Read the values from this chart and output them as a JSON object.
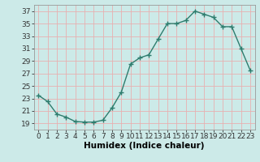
{
  "x": [
    0,
    1,
    2,
    3,
    4,
    5,
    6,
    7,
    8,
    9,
    10,
    11,
    12,
    13,
    14,
    15,
    16,
    17,
    18,
    19,
    20,
    21,
    22,
    23
  ],
  "y": [
    23.5,
    22.5,
    20.5,
    20.0,
    19.3,
    19.2,
    19.2,
    19.5,
    21.5,
    24.0,
    28.5,
    29.5,
    30.0,
    32.5,
    35.0,
    35.0,
    35.5,
    37.0,
    36.5,
    36.0,
    34.5,
    34.5,
    31.0,
    27.5
  ],
  "line_color": "#2e7d6e",
  "marker": "+",
  "marker_size": 4,
  "marker_lw": 1.0,
  "line_width": 1.0,
  "bg_color": "#cceae8",
  "grid_color": "#e8b0b0",
  "xlabel": "Humidex (Indice chaleur)",
  "xlim": [
    -0.5,
    23.5
  ],
  "ylim": [
    18.0,
    38.0
  ],
  "yticks": [
    19,
    21,
    23,
    25,
    27,
    29,
    31,
    33,
    35,
    37
  ],
  "xticks": [
    0,
    1,
    2,
    3,
    4,
    5,
    6,
    7,
    8,
    9,
    10,
    11,
    12,
    13,
    14,
    15,
    16,
    17,
    18,
    19,
    20,
    21,
    22,
    23
  ],
  "xlabel_fontsize": 7.5,
  "tick_fontsize": 6.5
}
